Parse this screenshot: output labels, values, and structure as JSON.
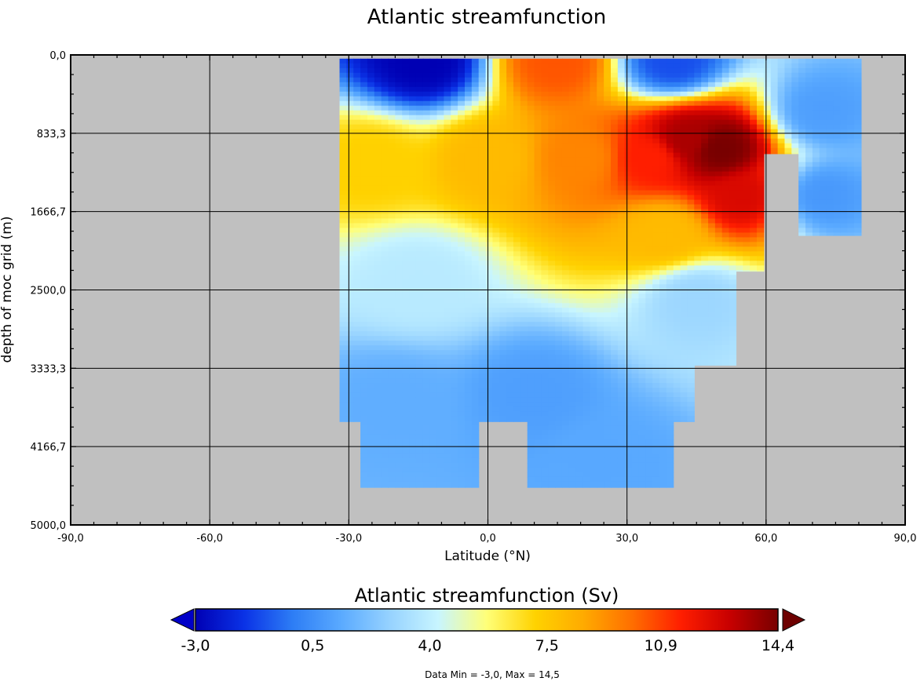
{
  "chart_data": {
    "type": "heatmap",
    "title": "Atlantic streamfunction",
    "xlabel": "Latitude (°N)",
    "ylabel": "depth of moc grid (m)",
    "xlim": [
      -90,
      90
    ],
    "ylim": [
      0,
      5000
    ],
    "y_inverted": true,
    "grid": true,
    "x_ticks": [
      "-90,0",
      "-60,0",
      "-30,0",
      "0,0",
      "30,0",
      "60,0",
      "90,0"
    ],
    "x_tick_values": [
      -90,
      -60,
      -30,
      0,
      30,
      60,
      90
    ],
    "y_ticks": [
      "0,0",
      "833,3",
      "1666,7",
      "2500,0",
      "3333,3",
      "4166,7",
      "5000,0"
    ],
    "y_tick_values": [
      0,
      833.3,
      1666.7,
      2500,
      3333.3,
      4166.7,
      5000
    ],
    "missing_color": "#c0c0c0",
    "colorbar": {
      "title": "Atlantic streamfunction (Sv)",
      "min": -3.0,
      "max": 14.4,
      "tick_labels": [
        "-3,0",
        "0,5",
        "4,0",
        "7,5",
        "10,9",
        "14,4"
      ],
      "tick_values": [
        -3.0,
        0.5,
        4.0,
        7.5,
        10.9,
        14.4
      ],
      "extend": "both",
      "under_color": "#0000c8",
      "over_color": "#6e0000",
      "colors": [
        "#0000b4",
        "#0a32e6",
        "#2d7df5",
        "#5aaaff",
        "#96d2ff",
        "#c8f5ff",
        "#ffff78",
        "#ffd200",
        "#ffaa00",
        "#ff6e00",
        "#ff1e00",
        "#c80000",
        "#780000"
      ]
    },
    "data_note": "Data Min = -3,0, Max = 14,5",
    "data_min": -3.0,
    "data_max": 14.5,
    "land_mask_columns": [
      {
        "lat_from": -32,
        "lat_to": -28,
        "bottom_depth": 3900
      },
      {
        "lat_from": -28,
        "lat_to": -1.5,
        "bottom_depth": 4600
      },
      {
        "lat_from": -1.5,
        "lat_to": 8,
        "bottom_depth": 3900
      },
      {
        "lat_from": 8,
        "lat_to": 39.5,
        "bottom_depth": 4600
      },
      {
        "lat_from": 39.5,
        "lat_to": 44,
        "bottom_depth": 3900
      },
      {
        "lat_from": 44,
        "lat_to": 54,
        "bottom_depth": 3300
      },
      {
        "lat_from": 54,
        "lat_to": 60,
        "bottom_depth": 2300
      },
      {
        "lat_from": 60,
        "lat_to": 66.5,
        "bottom_depth": 1050
      },
      {
        "lat_from": 66.5,
        "lat_to": 80.5,
        "bottom_depth": 1920
      }
    ],
    "ocean_top_depth": 40,
    "features": [
      {
        "lat": 50,
        "depth": 1000,
        "value": 14.4
      },
      {
        "lat": 43,
        "depth": 900,
        "value": 13.5
      },
      {
        "lat": 55,
        "depth": 1500,
        "value": 12.5
      },
      {
        "lat": 35,
        "depth": 1100,
        "value": 11.5
      },
      {
        "lat": 20,
        "depth": 1100,
        "value": 9.5
      },
      {
        "lat": 0,
        "depth": 1100,
        "value": 8.0
      },
      {
        "lat": -25,
        "depth": 1150,
        "value": 7.2
      },
      {
        "lat": 38,
        "depth": 1900,
        "value": 8.0
      },
      {
        "lat": 15,
        "depth": 60,
        "value": 10.5
      },
      {
        "lat": -14,
        "depth": 60,
        "value": -3.0
      },
      {
        "lat": 40,
        "depth": 60,
        "value": -1.0
      },
      {
        "lat": 72,
        "depth": 600,
        "value": 1.0
      },
      {
        "lat": 72,
        "depth": 1500,
        "value": 0.8
      },
      {
        "lat": 10,
        "depth": 3600,
        "value": 1.0
      },
      {
        "lat": -20,
        "depth": 3700,
        "value": 1.5
      },
      {
        "lat": 25,
        "depth": 4300,
        "value": 1.3
      },
      {
        "lat": -15,
        "depth": 2400,
        "value": 3.8
      },
      {
        "lat": 45,
        "depth": 2600,
        "value": 3.0
      }
    ]
  }
}
